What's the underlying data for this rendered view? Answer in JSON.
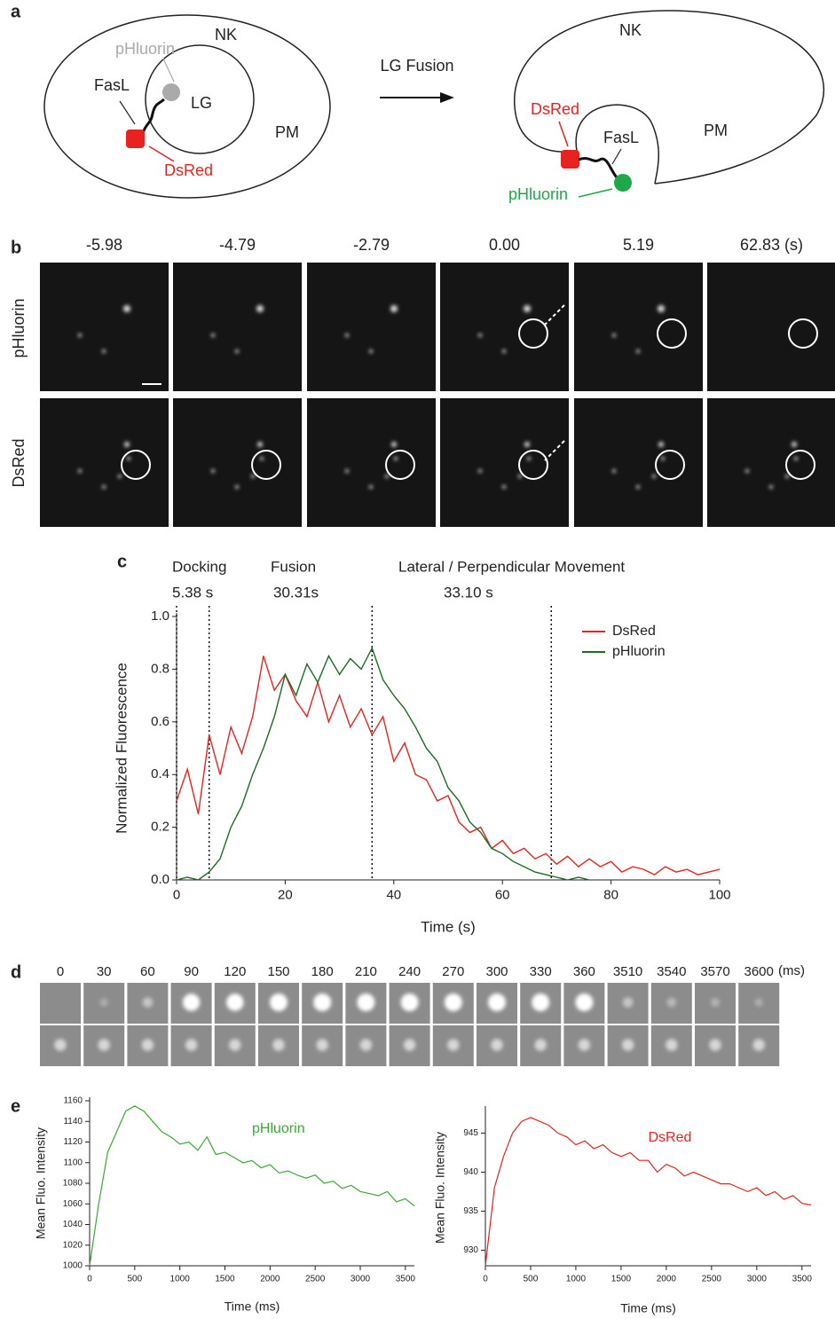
{
  "panel_a": {
    "label": "a",
    "before": [
      "NK",
      "pHluorin",
      "FasL",
      "LG",
      "PM",
      "DsRed"
    ],
    "arrow": "LG Fusion",
    "after": [
      "NK",
      "DsRed",
      "FasL",
      "PM",
      "pHluorin"
    ]
  },
  "panel_b": {
    "label": "b",
    "times": [
      "-5.98",
      "-4.79",
      "-2.79",
      "0.00",
      "5.19",
      "62.83 (s)"
    ],
    "rows": [
      "pHluorin",
      "DsRed"
    ]
  },
  "panel_d": {
    "label": "d",
    "times": [
      0,
      30,
      60,
      90,
      120,
      150,
      180,
      210,
      240,
      270,
      300,
      330,
      360,
      3510,
      3540,
      3570,
      3600
    ],
    "unit": "(ms)"
  },
  "panel_e": {
    "label": "e"
  },
  "chart_data": [
    {
      "type": "line",
      "panel": "c",
      "annotations": [
        "Docking",
        "5.38 s",
        "Fusion",
        "30.31s",
        "Lateral / Perpendicular Movement",
        "33.10 s"
      ],
      "y_label": "Normalized Fluorescence",
      "x_label": "Time (s)",
      "xlim": [
        0,
        100
      ],
      "xticks": [
        0,
        20,
        40,
        60,
        80,
        100
      ],
      "ylim": [
        0,
        1
      ],
      "yticks": [
        {
          "value": 0,
          "label": "0.0"
        },
        0.2,
        0.4,
        0.6,
        0.8,
        {
          "value": 1,
          "label": "1.0"
        }
      ],
      "vlines": [
        0,
        6,
        36,
        69
      ],
      "legend": "upper right",
      "x": [
        0,
        2,
        4,
        6,
        8,
        10,
        12,
        14,
        16,
        18,
        20,
        22,
        24,
        26,
        28,
        30,
        32,
        34,
        36,
        38,
        40,
        42,
        44,
        46,
        48,
        50,
        52,
        54,
        56,
        58,
        60,
        62,
        64,
        66,
        68,
        70,
        72,
        74,
        76,
        78,
        80,
        82,
        84,
        86,
        88,
        90,
        92,
        94,
        96,
        98,
        100
      ],
      "series": [
        {
          "name": "DsRed",
          "color": "#e8231f",
          "values": [
            0.3,
            0.42,
            0.25,
            0.55,
            0.4,
            0.58,
            0.48,
            0.62,
            0.85,
            0.72,
            0.78,
            0.68,
            0.62,
            0.75,
            0.6,
            0.7,
            0.58,
            0.65,
            0.55,
            0.62,
            0.45,
            0.52,
            0.4,
            0.38,
            0.3,
            0.32,
            0.22,
            0.18,
            0.2,
            0.12,
            0.15,
            0.1,
            0.12,
            0.08,
            0.1,
            0.06,
            0.09,
            0.05,
            0.08,
            0.05,
            0.07,
            0.03,
            0.05,
            0.04,
            0.02,
            0.05,
            0.03,
            0.04,
            0.02,
            0.03,
            0.04
          ]
        },
        {
          "name": "pHluorin",
          "color": "#1e6b22",
          "values": [
            0.0,
            0.01,
            0.0,
            0.03,
            0.08,
            0.2,
            0.28,
            0.4,
            0.5,
            0.62,
            0.78,
            0.7,
            0.82,
            0.75,
            0.85,
            0.78,
            0.84,
            0.8,
            0.88,
            0.76,
            0.7,
            0.65,
            0.58,
            0.5,
            0.45,
            0.35,
            0.3,
            0.22,
            0.18,
            0.12,
            0.1,
            0.07,
            0.05,
            0.03,
            0.02,
            0.01,
            0.0,
            0.01,
            0.0,
            null,
            null,
            null,
            null,
            null,
            null,
            null,
            null,
            null,
            null,
            null,
            null
          ]
        }
      ]
    },
    {
      "type": "line",
      "panel": "e",
      "y_label": "Mean Fluo. Intensity",
      "x_label": "Time (ms)",
      "xlim": [
        0,
        3600
      ],
      "xticks": [
        0,
        500,
        1000,
        1500,
        2000,
        2500,
        3000,
        3500
      ],
      "ylim": [
        1000,
        1160
      ],
      "yticks": [
        1000,
        1020,
        1040,
        1060,
        1080,
        1100,
        1120,
        1140,
        1160
      ],
      "x": [
        0,
        100,
        200,
        300,
        400,
        500,
        600,
        700,
        800,
        900,
        1000,
        1100,
        1200,
        1300,
        1400,
        1500,
        1600,
        1700,
        1800,
        1900,
        2000,
        2100,
        2200,
        2300,
        2400,
        2500,
        2600,
        2700,
        2800,
        2900,
        3000,
        3100,
        3200,
        3300,
        3400,
        3500,
        3600
      ],
      "series": [
        {
          "name": "pHluorin",
          "color": "#3aaa35",
          "values": [
            1000,
            1060,
            1110,
            1130,
            1150,
            1155,
            1150,
            1140,
            1130,
            1125,
            1118,
            1120,
            1112,
            1125,
            1108,
            1110,
            1105,
            1100,
            1102,
            1095,
            1098,
            1090,
            1092,
            1088,
            1085,
            1088,
            1080,
            1082,
            1075,
            1078,
            1072,
            1070,
            1068,
            1072,
            1062,
            1065,
            1058
          ]
        }
      ]
    },
    {
      "type": "line",
      "y_label": "Mean Fluo. Intensity",
      "x_label": "Time (ms)",
      "xlim": [
        0,
        3600
      ],
      "xticks": [
        0,
        500,
        1000,
        1500,
        2000,
        2500,
        3000,
        3500
      ],
      "ylim": [
        928,
        948
      ],
      "yticks": [
        930,
        935,
        940,
        945
      ],
      "x": [
        0,
        100,
        200,
        300,
        400,
        500,
        600,
        700,
        800,
        900,
        1000,
        1100,
        1200,
        1300,
        1400,
        1500,
        1600,
        1700,
        1800,
        1900,
        2000,
        2100,
        2200,
        2300,
        2400,
        2500,
        2600,
        2700,
        2800,
        2900,
        3000,
        3100,
        3200,
        3300,
        3400,
        3500,
        3600
      ],
      "series": [
        {
          "name": "DsRed",
          "color": "#e8231f",
          "values": [
            928,
            938,
            942,
            945,
            946.5,
            947,
            946.5,
            946,
            945,
            944.5,
            943.5,
            944,
            943,
            943.5,
            942.5,
            942,
            942.5,
            941.5,
            941.5,
            940,
            941,
            940.5,
            939.5,
            940,
            939.5,
            939,
            938.5,
            938.5,
            938,
            937.5,
            938,
            937,
            937.5,
            936.5,
            937,
            936,
            935.8
          ]
        }
      ]
    }
  ]
}
